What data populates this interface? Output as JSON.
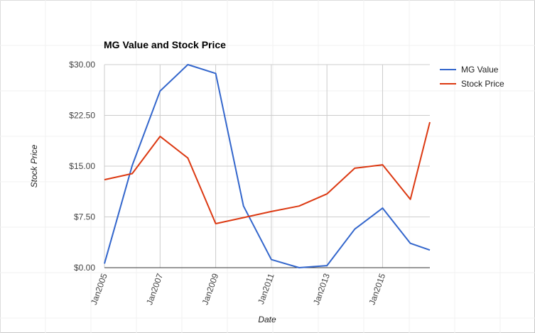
{
  "chart_data": {
    "type": "line",
    "title": "MG Value and Stock Price",
    "xlabel": "Date",
    "ylabel": "Stock Price",
    "x_ticks": [
      "Jan2005",
      "Jan2007",
      "Jan2009",
      "Jan2011",
      "Jan2013",
      "Jan2015"
    ],
    "y_ticks": [
      "$0.00",
      "$7.50",
      "$15.00",
      "$22.50",
      "$30.00"
    ],
    "ylim": [
      0,
      30
    ],
    "xlim": [
      2005,
      2016.7
    ],
    "grid": true,
    "legend_position": "right",
    "x": [
      2005,
      2006,
      2007,
      2008,
      2009,
      2010,
      2011,
      2012,
      2013,
      2014,
      2015,
      2016,
      2016.7
    ],
    "series": [
      {
        "name": "MG Value",
        "color": "#3366cc",
        "values": [
          0.6,
          15.1,
          26.1,
          30.0,
          28.7,
          9.1,
          1.2,
          0.0,
          0.3,
          5.7,
          8.8,
          3.6,
          2.6
        ]
      },
      {
        "name": "Stock Price",
        "color": "#dc3912",
        "values": [
          13.0,
          13.9,
          19.4,
          16.2,
          6.5,
          7.4,
          8.3,
          9.1,
          10.9,
          14.7,
          15.2,
          10.1,
          21.5
        ]
      }
    ]
  }
}
